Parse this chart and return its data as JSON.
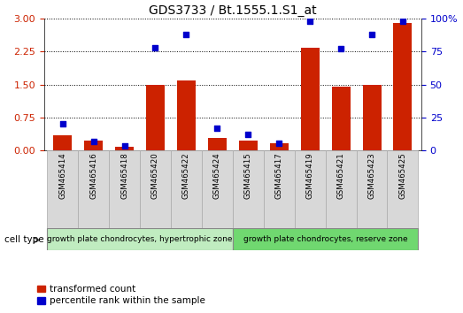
{
  "title": "GDS3733 / Bt.1555.1.S1_at",
  "samples": [
    "GSM465414",
    "GSM465416",
    "GSM465418",
    "GSM465420",
    "GSM465422",
    "GSM465424",
    "GSM465415",
    "GSM465417",
    "GSM465419",
    "GSM465421",
    "GSM465423",
    "GSM465425"
  ],
  "transformed_count": [
    0.35,
    0.22,
    0.07,
    1.5,
    1.6,
    0.28,
    0.22,
    0.16,
    2.33,
    1.45,
    1.5,
    2.9
  ],
  "percentile_rank": [
    20,
    7,
    3,
    78,
    88,
    17,
    12,
    5,
    98,
    77,
    88,
    98
  ],
  "group1_label": "growth plate chondrocytes, hypertrophic zone",
  "group2_label": "growth plate chondrocytes, reserve zone",
  "group1_count": 6,
  "group2_count": 6,
  "ylim_left": [
    0,
    3
  ],
  "ylim_right": [
    0,
    100
  ],
  "yticks_left": [
    0,
    0.75,
    1.5,
    2.25,
    3
  ],
  "yticks_right": [
    0,
    25,
    50,
    75,
    100
  ],
  "bar_color_red": "#cc2200",
  "bar_color_blue": "#0000cc",
  "bg_color_group1": "#c0ecc0",
  "bg_color_group2": "#70d870",
  "legend_red": "transformed count",
  "legend_blue": "percentile rank within the sample",
  "cell_type_label": "cell type"
}
